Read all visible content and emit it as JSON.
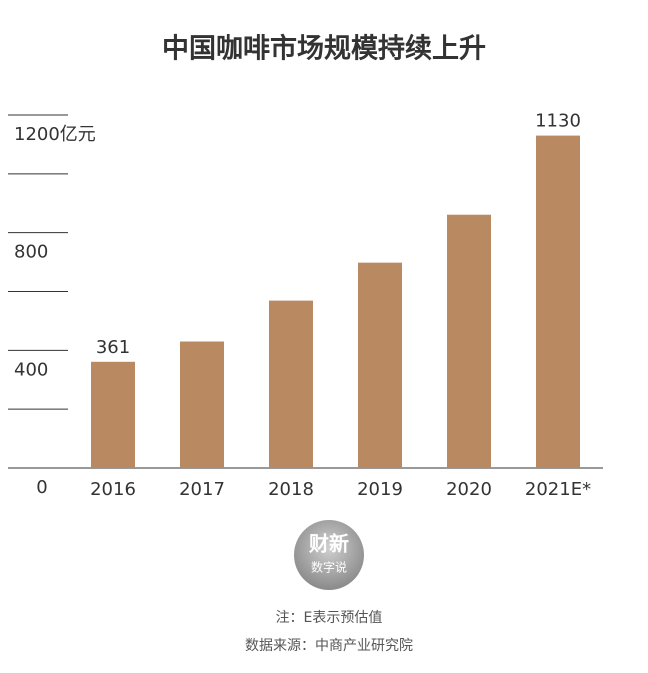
{
  "chart_data": {
    "type": "bar",
    "title": "中国咖啡市场规模持续上升",
    "categories": [
      "2016",
      "2017",
      "2018",
      "2019",
      "2020",
      "2021E*"
    ],
    "values": [
      361,
      430,
      569,
      698,
      861,
      1130
    ],
    "value_labels": [
      "361",
      null,
      null,
      null,
      null,
      "1130"
    ],
    "color": "#b98a62",
    "ylim": [
      0,
      1200
    ],
    "yticks": [
      0,
      400,
      800,
      {
        "value": 1200,
        "label": "1200亿元"
      }
    ],
    "minor_yticks": [
      200,
      600,
      1000
    ],
    "grid": true
  },
  "logo": {
    "line1": "财新",
    "line2": "数字说"
  },
  "footer": {
    "note": "注：E表示预估值",
    "source": "数据来源：中商产业研究院"
  }
}
